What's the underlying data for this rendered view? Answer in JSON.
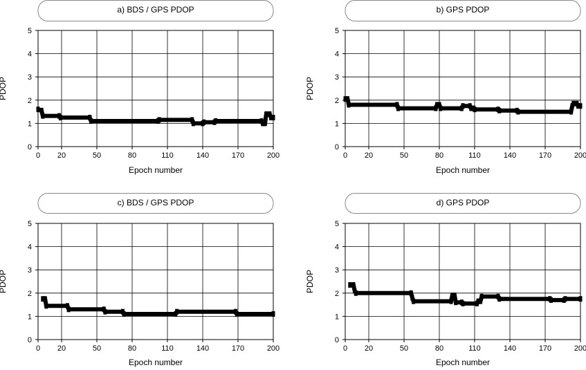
{
  "chart_data": [
    {
      "type": "line",
      "title": "a)   BDS / GPS  PDOP",
      "xlabel": "Epoch number",
      "ylabel": "PDOP",
      "xlim": [
        0,
        200
      ],
      "ylim": [
        0,
        5
      ],
      "x_ticks": [
        "0",
        "20",
        "50",
        "80",
        "110",
        "140",
        "170",
        "200"
      ],
      "y_ticks": [
        "0",
        "1",
        "2",
        "3",
        "4",
        "5"
      ],
      "grid": true,
      "series": [
        {
          "points": [
            [
              0,
              1.6
            ],
            [
              3,
              1.55
            ],
            [
              4,
              1.32
            ],
            [
              18,
              1.32
            ],
            [
              19,
              1.25
            ],
            [
              44,
              1.25
            ],
            [
              45,
              1.1
            ],
            [
              102,
              1.1
            ],
            [
              103,
              1.15
            ],
            [
              131,
              1.15
            ],
            [
              132,
              1.0
            ],
            [
              140,
              1.0
            ],
            [
              141,
              1.05
            ],
            [
              150,
              1.05
            ],
            [
              151,
              1.1
            ],
            [
              190,
              1.1
            ],
            [
              191,
              1.0
            ],
            [
              193,
              1.0
            ],
            [
              194,
              1.4
            ],
            [
              197,
              1.4
            ],
            [
              198,
              1.25
            ],
            [
              200,
              1.25
            ]
          ]
        }
      ]
    },
    {
      "type": "line",
      "title": "b)   GPS  PDOP",
      "xlabel": "Epoch number",
      "ylabel": "PDOP",
      "xlim": [
        0,
        200
      ],
      "ylim": [
        0,
        5
      ],
      "x_ticks": [
        "0",
        "20",
        "50",
        "80",
        "110",
        "140",
        "170",
        "200"
      ],
      "y_ticks": [
        "0",
        "1",
        "2",
        "3",
        "4",
        "5"
      ],
      "grid": true,
      "series": [
        {
          "points": [
            [
              0,
              2.05
            ],
            [
              2,
              2.05
            ],
            [
              3,
              1.8
            ],
            [
              44,
              1.8
            ],
            [
              45,
              1.65
            ],
            [
              77,
              1.65
            ],
            [
              78,
              1.8
            ],
            [
              80,
              1.8
            ],
            [
              81,
              1.65
            ],
            [
              99,
              1.65
            ],
            [
              100,
              1.75
            ],
            [
              106,
              1.75
            ],
            [
              107,
              1.65
            ],
            [
              109,
              1.65
            ],
            [
              110,
              1.6
            ],
            [
              130,
              1.6
            ],
            [
              131,
              1.55
            ],
            [
              146,
              1.55
            ],
            [
              147,
              1.5
            ],
            [
              192,
              1.5
            ],
            [
              193,
              1.75
            ],
            [
              194,
              1.85
            ],
            [
              197,
              1.85
            ],
            [
              198,
              1.75
            ],
            [
              200,
              1.75
            ]
          ]
        }
      ]
    },
    {
      "type": "line",
      "title": "c)   BDS / GPS  PDOP",
      "xlabel": "Epoch number",
      "ylabel": "PDOP",
      "xlim": [
        0,
        200
      ],
      "ylim": [
        0,
        5
      ],
      "x_ticks": [
        "0",
        "20",
        "50",
        "80",
        "110",
        "140",
        "170",
        "200"
      ],
      "y_ticks": [
        "0",
        "1",
        "2",
        "3",
        "4",
        "5"
      ],
      "grid": true,
      "series": [
        {
          "points": [
            [
              4,
              1.75
            ],
            [
              6,
              1.75
            ],
            [
              7,
              1.45
            ],
            [
              25,
              1.45
            ],
            [
              26,
              1.3
            ],
            [
              56,
              1.3
            ],
            [
              57,
              1.2
            ],
            [
              72,
              1.2
            ],
            [
              73,
              1.1
            ],
            [
              117,
              1.1
            ],
            [
              118,
              1.2
            ],
            [
              168,
              1.2
            ],
            [
              169,
              1.1
            ],
            [
              200,
              1.1
            ]
          ]
        }
      ]
    },
    {
      "type": "line",
      "title": "d)   GPS  PDOP",
      "xlabel": "Epoch number",
      "ylabel": "PDOP",
      "xlim": [
        0,
        200
      ],
      "ylim": [
        0,
        5
      ],
      "x_ticks": [
        "0",
        "20",
        "50",
        "80",
        "110",
        "140",
        "170",
        "200"
      ],
      "y_ticks": [
        "0",
        "1",
        "2",
        "3",
        "4",
        "5"
      ],
      "grid": true,
      "series": [
        {
          "points": [
            [
              4,
              2.35
            ],
            [
              7,
              2.35
            ],
            [
              8,
              2.1
            ],
            [
              9,
              2.0
            ],
            [
              56,
              2.0
            ],
            [
              57,
              1.8
            ],
            [
              58,
              1.65
            ],
            [
              90,
              1.65
            ],
            [
              91,
              1.9
            ],
            [
              93,
              1.9
            ],
            [
              94,
              1.6
            ],
            [
              99,
              1.6
            ],
            [
              100,
              1.55
            ],
            [
              112,
              1.55
            ],
            [
              113,
              1.65
            ],
            [
              115,
              1.65
            ],
            [
              116,
              1.85
            ],
            [
              130,
              1.85
            ],
            [
              131,
              1.75
            ],
            [
              174,
              1.75
            ],
            [
              175,
              1.7
            ],
            [
              186,
              1.7
            ],
            [
              187,
              1.75
            ],
            [
              200,
              1.75
            ]
          ]
        }
      ]
    }
  ]
}
